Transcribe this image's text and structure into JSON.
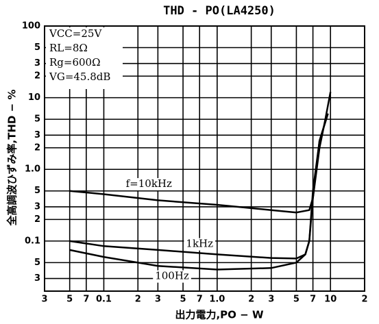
{
  "chart_data": {
    "type": "line",
    "title": "THD - PO(LA4250)",
    "x_label": "出力電力,PO − W",
    "y_label": "全高調波ひずみ率,THD − %",
    "conditions": [
      "VCC=25V",
      "RL=8Ω",
      "Rg=600Ω",
      "VG=45.8dB"
    ],
    "x_log": true,
    "y_log": true,
    "grid": true,
    "xlim": [
      0.03,
      20
    ],
    "ylim": [
      0.02,
      100
    ],
    "xticks": [
      {
        "value": 0.03,
        "label": "3"
      },
      {
        "value": 0.05,
        "label": "5"
      },
      {
        "value": 0.07,
        "label": "7"
      },
      0.1,
      {
        "value": 0.2,
        "label": "2"
      },
      {
        "value": 0.3,
        "label": "3"
      },
      {
        "value": 0.5,
        "label": "5"
      },
      {
        "value": 0.7,
        "label": "7"
      },
      {
        "value": 1,
        "label": "1.0"
      },
      {
        "value": 2,
        "label": "2"
      },
      {
        "value": 3,
        "label": "3"
      },
      {
        "value": 5,
        "label": "5"
      },
      {
        "value": 7,
        "label": "7"
      },
      10,
      {
        "value": 20,
        "label": "2"
      }
    ],
    "yticks": [
      100,
      {
        "value": 50,
        "label": "5"
      },
      {
        "value": 30,
        "label": "3"
      },
      {
        "value": 20,
        "label": "2"
      },
      10,
      5,
      3,
      2,
      {
        "value": 1,
        "label": "1.0"
      },
      {
        "value": 0.5,
        "label": "5"
      },
      {
        "value": 0.3,
        "label": "3"
      },
      {
        "value": 0.2,
        "label": "2"
      },
      0.1,
      {
        "value": 0.05,
        "label": "5"
      },
      {
        "value": 0.03,
        "label": "3"
      }
    ],
    "series": [
      {
        "name": "f=10kHz",
        "color": "#000000",
        "x": [
          0.05,
          0.1,
          0.3,
          1,
          3,
          5,
          6.5,
          7,
          8,
          9,
          10
        ],
        "values": [
          0.5,
          0.45,
          0.37,
          0.32,
          0.27,
          0.25,
          0.27,
          0.4,
          2,
          5,
          12
        ]
      },
      {
        "name": "1kHz",
        "color": "#000000",
        "x": [
          0.05,
          0.1,
          0.3,
          1,
          3,
          5,
          6,
          6.5,
          7,
          8,
          9.5
        ],
        "values": [
          0.1,
          0.085,
          0.075,
          0.065,
          0.058,
          0.057,
          0.065,
          0.1,
          0.5,
          2.5,
          6
        ]
      },
      {
        "name": "100Hz",
        "color": "#000000",
        "x": [
          0.05,
          0.1,
          0.3,
          1,
          3,
          5,
          6,
          6.5,
          7,
          8,
          9.5
        ],
        "values": [
          0.075,
          0.06,
          0.045,
          0.04,
          0.042,
          0.05,
          0.065,
          0.1,
          0.4,
          2.5,
          6
        ]
      }
    ]
  }
}
